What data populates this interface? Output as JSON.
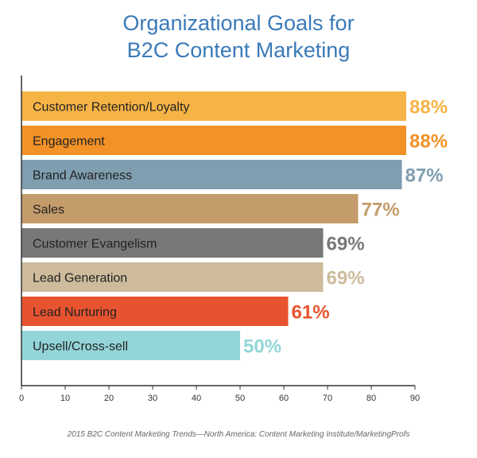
{
  "chart_data": {
    "type": "bar",
    "orientation": "horizontal",
    "title_lines": [
      "Organizational Goals for",
      "B2C Content Marketing"
    ],
    "categories": [
      "Customer Retention/Loyalty",
      "Engagement",
      "Brand Awareness",
      "Sales",
      "Customer Evangelism",
      "Lead Generation",
      "Lead Nurturing",
      "Upsell/Cross-sell"
    ],
    "values": [
      88,
      88,
      87,
      77,
      69,
      69,
      61,
      50
    ],
    "value_labels": [
      "88%",
      "88%",
      "87%",
      "77%",
      "69%",
      "69%",
      "61%",
      "50%"
    ],
    "colors": [
      "#f7b446",
      "#f29227",
      "#7f9eaf",
      "#c49c6b",
      "#78787a",
      "#cdbb9c",
      "#e8532f",
      "#93d5d8"
    ],
    "xlim": [
      0,
      90
    ],
    "xticks": [
      0,
      10,
      20,
      30,
      40,
      50,
      60,
      70,
      80,
      90
    ],
    "grid": false
  },
  "source": "2015 B2C Content Marketing Trends—North America: Content Marketing Institute/MarketingProfs"
}
